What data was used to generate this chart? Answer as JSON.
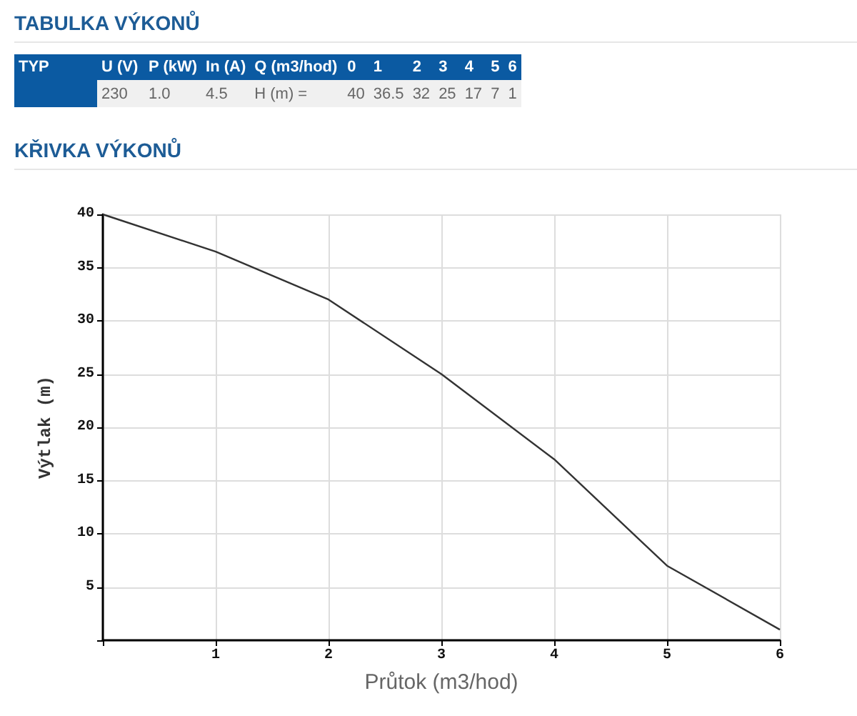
{
  "chart_data": {
    "type": "line",
    "title": "KŘIVKA VÝKONŮ",
    "xlabel": "Průtok (m3/hod)",
    "ylabel": "Výtlak (m)",
    "annotations": [
      "TABULKA VÝKONŮ",
      "TYP",
      "U (V)",
      "P (kW)",
      "In (A)",
      "Q (m3/hod)",
      "0",
      "1",
      "2",
      "3",
      "4",
      "5",
      "6",
      "230",
      "1.0",
      "4.5",
      "H (m) =",
      "40",
      "36.5",
      "32",
      "25",
      "17",
      "7",
      "1"
    ],
    "x": [
      0,
      1,
      2,
      3,
      4,
      5,
      6
    ],
    "values": [
      40,
      36.5,
      32,
      25,
      17,
      7,
      1
    ],
    "color": "#333333",
    "xlim": [
      0,
      6
    ],
    "xticks": [
      {
        "value": 0,
        "label": null
      },
      1,
      2,
      3,
      4,
      5,
      6
    ],
    "ylim": [
      0,
      40
    ],
    "yticks": [
      {
        "value": 0,
        "label": null
      },
      5,
      10,
      15,
      20,
      25,
      30,
      35,
      40
    ],
    "grid": true,
    "marker": "none"
  }
}
